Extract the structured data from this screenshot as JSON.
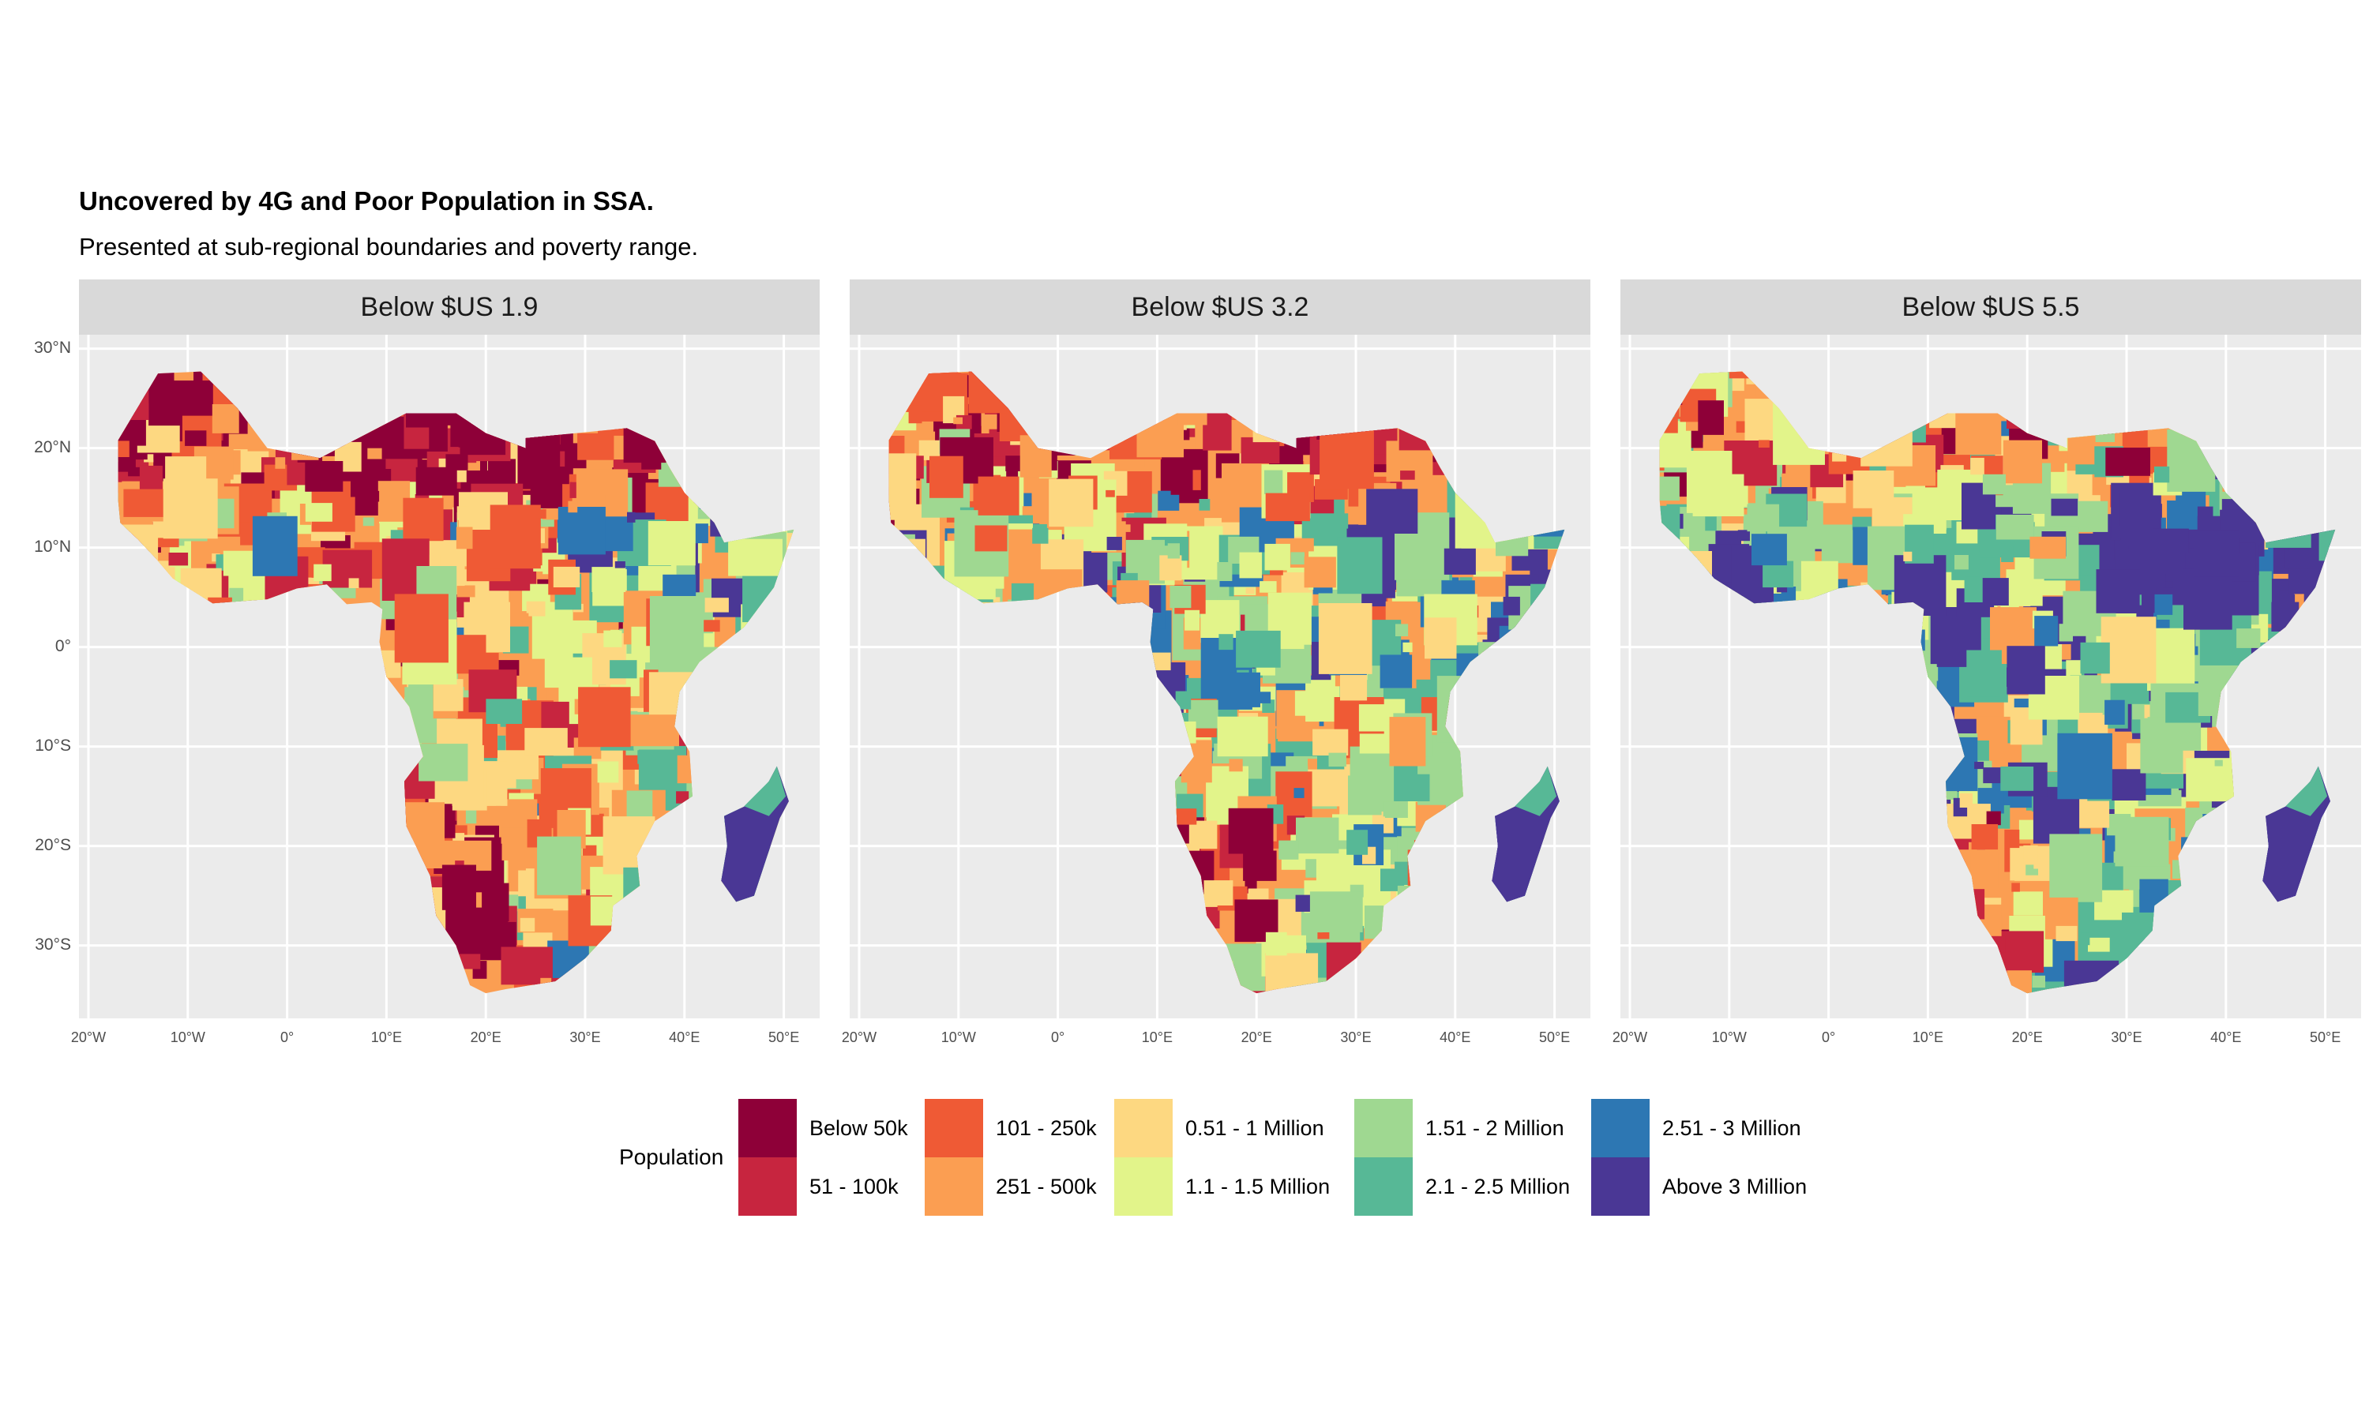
{
  "title": "Uncovered by 4G and Poor Population in SSA.",
  "subtitle": "Presented at sub-regional boundaries and poverty range.",
  "panels": [
    {
      "label": "Below $US 1.9",
      "skew": 0
    },
    {
      "label": "Below $US 3.2",
      "skew": 1
    },
    {
      "label": "Below $US 5.5",
      "skew": 2
    }
  ],
  "y_axis_labels": [
    "30°N",
    "20°N",
    "10°N",
    "0°",
    "10°S",
    "20°S",
    "30°S"
  ],
  "x_axis_labels": [
    "20°W",
    "10°W",
    "0°",
    "10°E",
    "20°E",
    "30°E",
    "40°E",
    "50°E"
  ],
  "legend": {
    "title": "Population",
    "items": [
      {
        "label": "Below 50k",
        "color": "#8e0038"
      },
      {
        "label": "51 - 100k",
        "color": "#c7253f"
      },
      {
        "label": "101 - 250k",
        "color": "#ef5a35"
      },
      {
        "label": "251 - 500k",
        "color": "#fb9e52"
      },
      {
        "label": "0.51 - 1 Million",
        "color": "#fdd881"
      },
      {
        "label": "1.1 - 1.5 Million",
        "color": "#e2f48a"
      },
      {
        "label": "1.51 - 2 Million",
        "color": "#9fd891"
      },
      {
        "label": "2.1 - 2.5 Million",
        "color": "#57b896"
      },
      {
        "label": "2.51 - 3 Million",
        "color": "#2d77b3"
      },
      {
        "label": "Above 3 Million",
        "color": "#4a3795"
      }
    ]
  }
}
